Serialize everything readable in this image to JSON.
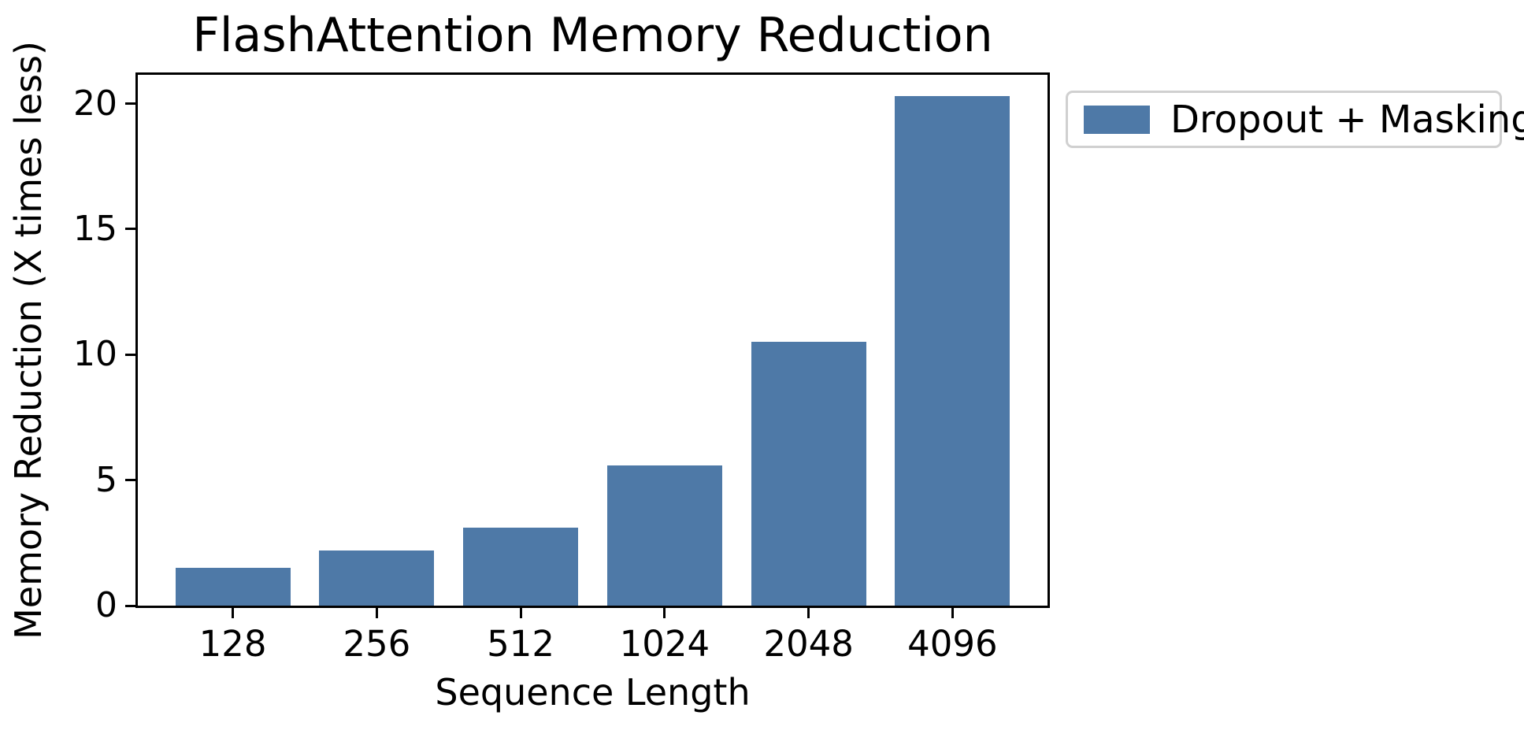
{
  "chart_data": {
    "type": "bar",
    "title": "FlashAttention Memory Reduction",
    "xlabel": "Sequence Length",
    "ylabel": "Memory Reduction (X times less)",
    "categories": [
      "128",
      "256",
      "512",
      "1024",
      "2048",
      "4096"
    ],
    "series": [
      {
        "name": "Dropout + Masking",
        "values": [
          1.5,
          2.2,
          3.1,
          5.6,
          10.5,
          20.3
        ]
      }
    ],
    "ylim": [
      0,
      21.15
    ],
    "yticks": [
      0,
      5,
      10,
      15,
      20
    ],
    "grid": false,
    "legend_position": "outside-upper-right",
    "colors": {
      "bar": "#4e79a7",
      "axis": "#000000",
      "text": "#000000",
      "legend_border": "#d0d0d0",
      "background": "#ffffff"
    }
  }
}
